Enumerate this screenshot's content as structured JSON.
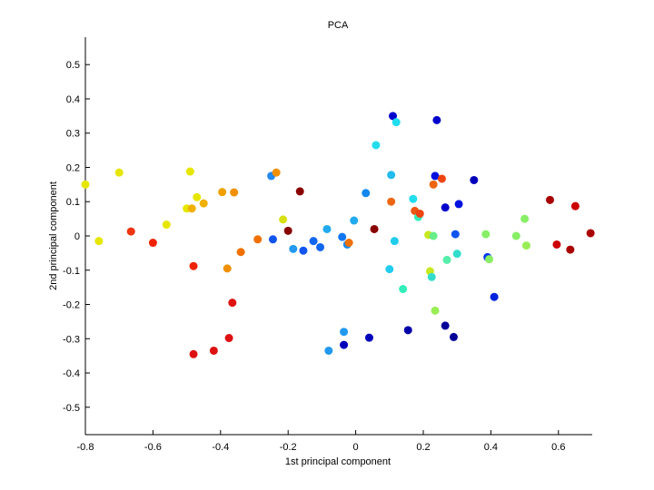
{
  "chart_data": {
    "type": "scatter",
    "title": "PCA",
    "xlabel": "1st principal component",
    "ylabel": "2nd principal component",
    "xlim": [
      -0.8,
      0.7
    ],
    "ylim": [
      -0.58,
      0.58
    ],
    "xticks": [
      "-0.8",
      "-0.6",
      "-0.4",
      "-0.2",
      "0",
      "0.2",
      "0.4",
      "0.6"
    ],
    "xtick_values": [
      -0.8,
      -0.6,
      -0.4,
      -0.2,
      0,
      0.2,
      0.4,
      0.6
    ],
    "yticks": [
      "-0.5",
      "-0.4",
      "-0.3",
      "-0.2",
      "-0.1",
      "0",
      "0.1",
      "0.2",
      "0.3",
      "0.4",
      "0.5"
    ],
    "ytick_values": [
      -0.5,
      -0.4,
      -0.3,
      -0.2,
      -0.1,
      0,
      0.1,
      0.2,
      0.3,
      0.4,
      0.5
    ],
    "grid": false,
    "points": [
      {
        "x": -0.8,
        "y": 0.15,
        "color": "#e6e600"
      },
      {
        "x": -0.76,
        "y": -0.015,
        "color": "#e6e600"
      },
      {
        "x": -0.7,
        "y": 0.185,
        "color": "#e6e600"
      },
      {
        "x": -0.665,
        "y": 0.013,
        "color": "#ee3311"
      },
      {
        "x": -0.6,
        "y": -0.02,
        "color": "#ee2200"
      },
      {
        "x": -0.56,
        "y": 0.033,
        "color": "#e6e600"
      },
      {
        "x": -0.5,
        "y": 0.08,
        "color": "#e6e600"
      },
      {
        "x": -0.49,
        "y": 0.188,
        "color": "#e6e600"
      },
      {
        "x": -0.485,
        "y": 0.08,
        "color": "#f0b000"
      },
      {
        "x": -0.48,
        "y": -0.088,
        "color": "#ee2200"
      },
      {
        "x": -0.48,
        "y": -0.345,
        "color": "#dd1111"
      },
      {
        "x": -0.47,
        "y": 0.113,
        "color": "#e6e600"
      },
      {
        "x": -0.45,
        "y": 0.095,
        "color": "#f0b000"
      },
      {
        "x": -0.42,
        "y": -0.335,
        "color": "#dd1111"
      },
      {
        "x": -0.395,
        "y": 0.128,
        "color": "#f0a000"
      },
      {
        "x": -0.38,
        "y": -0.095,
        "color": "#f09000"
      },
      {
        "x": -0.375,
        "y": -0.298,
        "color": "#dd1111"
      },
      {
        "x": -0.365,
        "y": -0.195,
        "color": "#dd1111"
      },
      {
        "x": -0.36,
        "y": 0.127,
        "color": "#f09000"
      },
      {
        "x": -0.34,
        "y": -0.047,
        "color": "#f07000"
      },
      {
        "x": -0.29,
        "y": -0.01,
        "color": "#f07000"
      },
      {
        "x": -0.25,
        "y": 0.175,
        "color": "#2288ee"
      },
      {
        "x": -0.245,
        "y": -0.01,
        "color": "#1155ee"
      },
      {
        "x": -0.235,
        "y": 0.185,
        "color": "#f09000"
      },
      {
        "x": -0.215,
        "y": 0.048,
        "color": "#d8e010"
      },
      {
        "x": -0.2,
        "y": 0.015,
        "color": "#880000"
      },
      {
        "x": -0.185,
        "y": -0.038,
        "color": "#2299ee"
      },
      {
        "x": -0.165,
        "y": 0.13,
        "color": "#880000"
      },
      {
        "x": -0.155,
        "y": -0.043,
        "color": "#1155ee"
      },
      {
        "x": -0.125,
        "y": -0.015,
        "color": "#1166ee"
      },
      {
        "x": -0.105,
        "y": -0.033,
        "color": "#1166ee"
      },
      {
        "x": -0.085,
        "y": 0.02,
        "color": "#22aaee"
      },
      {
        "x": -0.08,
        "y": -0.335,
        "color": "#2299ee"
      },
      {
        "x": -0.04,
        "y": -0.003,
        "color": "#1177ee"
      },
      {
        "x": -0.035,
        "y": -0.28,
        "color": "#2299ee"
      },
      {
        "x": -0.035,
        "y": -0.318,
        "color": "#0000bb"
      },
      {
        "x": -0.025,
        "y": -0.025,
        "color": "#1188ee"
      },
      {
        "x": -0.02,
        "y": -0.02,
        "color": "#f07000"
      },
      {
        "x": -0.005,
        "y": 0.045,
        "color": "#22aaee"
      },
      {
        "x": 0.03,
        "y": 0.125,
        "color": "#1188ee"
      },
      {
        "x": 0.04,
        "y": -0.297,
        "color": "#0000bb"
      },
      {
        "x": 0.055,
        "y": 0.02,
        "color": "#880000"
      },
      {
        "x": 0.06,
        "y": 0.265,
        "color": "#22ddee"
      },
      {
        "x": 0.1,
        "y": -0.097,
        "color": "#22ccee"
      },
      {
        "x": 0.105,
        "y": 0.1,
        "color": "#ee6611"
      },
      {
        "x": 0.105,
        "y": 0.178,
        "color": "#22bbee"
      },
      {
        "x": 0.11,
        "y": 0.35,
        "color": "#0000cc"
      },
      {
        "x": 0.115,
        "y": -0.015,
        "color": "#22ccee"
      },
      {
        "x": 0.12,
        "y": 0.332,
        "color": "#22ddee"
      },
      {
        "x": 0.14,
        "y": -0.155,
        "color": "#33eebb"
      },
      {
        "x": 0.155,
        "y": -0.275,
        "color": "#0000aa"
      },
      {
        "x": 0.17,
        "y": 0.108,
        "color": "#22ddee"
      },
      {
        "x": 0.175,
        "y": 0.073,
        "color": "#ee5511"
      },
      {
        "x": 0.185,
        "y": 0.055,
        "color": "#33eebb"
      },
      {
        "x": 0.19,
        "y": 0.065,
        "color": "#ee4411"
      },
      {
        "x": 0.215,
        "y": 0.003,
        "color": "#c8e820"
      },
      {
        "x": 0.22,
        "y": -0.103,
        "color": "#c8e820"
      },
      {
        "x": 0.225,
        "y": -0.12,
        "color": "#33ddcc"
      },
      {
        "x": 0.23,
        "y": 0.15,
        "color": "#ee6611"
      },
      {
        "x": 0.23,
        "y": 0.0,
        "color": "#66ee88"
      },
      {
        "x": 0.235,
        "y": 0.175,
        "color": "#0011dd"
      },
      {
        "x": 0.235,
        "y": -0.218,
        "color": "#99ee55"
      },
      {
        "x": 0.24,
        "y": 0.338,
        "color": "#0000cc"
      },
      {
        "x": 0.255,
        "y": 0.167,
        "color": "#ee4411"
      },
      {
        "x": 0.265,
        "y": 0.083,
        "color": "#0000cc"
      },
      {
        "x": 0.265,
        "y": -0.262,
        "color": "#000099"
      },
      {
        "x": 0.27,
        "y": -0.07,
        "color": "#55eeaa"
      },
      {
        "x": 0.29,
        "y": -0.295,
        "color": "#000099"
      },
      {
        "x": 0.295,
        "y": 0.005,
        "color": "#1155ee"
      },
      {
        "x": 0.3,
        "y": -0.052,
        "color": "#33ddcc"
      },
      {
        "x": 0.305,
        "y": 0.093,
        "color": "#0011dd"
      },
      {
        "x": 0.35,
        "y": 0.163,
        "color": "#0000bb"
      },
      {
        "x": 0.385,
        "y": 0.005,
        "color": "#88ee66"
      },
      {
        "x": 0.39,
        "y": -0.062,
        "color": "#0033ee"
      },
      {
        "x": 0.395,
        "y": -0.068,
        "color": "#88ee66"
      },
      {
        "x": 0.41,
        "y": -0.178,
        "color": "#0022dd"
      },
      {
        "x": 0.475,
        "y": 0.0,
        "color": "#88ee66"
      },
      {
        "x": 0.5,
        "y": 0.05,
        "color": "#88ee66"
      },
      {
        "x": 0.505,
        "y": -0.028,
        "color": "#99ee55"
      },
      {
        "x": 0.575,
        "y": 0.105,
        "color": "#aa0000"
      },
      {
        "x": 0.595,
        "y": -0.025,
        "color": "#cc0000"
      },
      {
        "x": 0.635,
        "y": -0.04,
        "color": "#aa0000"
      },
      {
        "x": 0.65,
        "y": 0.087,
        "color": "#cc0000"
      },
      {
        "x": 0.695,
        "y": 0.008,
        "color": "#aa0000"
      }
    ]
  }
}
